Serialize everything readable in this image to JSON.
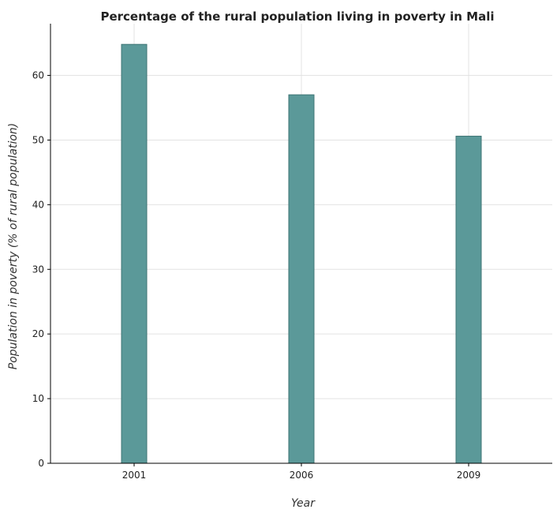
{
  "chart_data": {
    "type": "bar",
    "title": "Percentage of the rural population living in poverty in Mali",
    "xlabel": "Year",
    "ylabel": "Population in poverty (% of rural population)",
    "categories": [
      "2001",
      "2006",
      "2009"
    ],
    "values": [
      64.8,
      57.0,
      50.6
    ],
    "ylim": [
      0,
      68
    ],
    "yticks": [
      0,
      10,
      20,
      30,
      40,
      50,
      60
    ],
    "grid": true,
    "bar_color": "#5b9999",
    "bar_edge_color": "#3f7575"
  }
}
